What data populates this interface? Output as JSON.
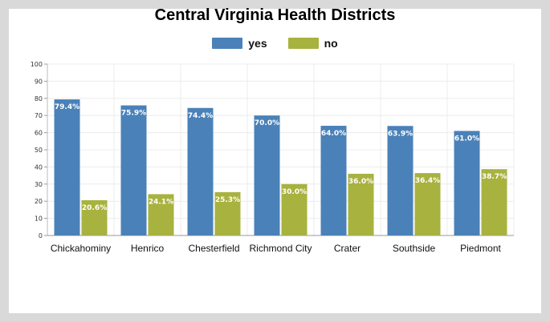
{
  "chart_data": {
    "type": "bar",
    "title": "Central Virginia Health Districts",
    "categories": [
      "Chickahominy",
      "Henrico",
      "Chesterfield",
      "Richmond City",
      "Crater",
      "Southside",
      "Piedmont"
    ],
    "series": [
      {
        "name": "yes",
        "color": "#4a81b8",
        "values": [
          79.4,
          75.9,
          74.4,
          70.0,
          64.0,
          63.9,
          61.0
        ],
        "labels": [
          "79.4%",
          "75.9%",
          "74.4%",
          "70.0%",
          "64.0%",
          "63.9%",
          "61.0%"
        ]
      },
      {
        "name": "no",
        "color": "#a8b23f",
        "values": [
          20.6,
          24.1,
          25.3,
          30.0,
          36.0,
          36.4,
          38.7
        ],
        "labels": [
          "20.6%",
          "24.1%",
          "25.3%",
          "30.0%",
          "36.0%",
          "36.4%",
          "38.7%"
        ]
      }
    ],
    "ylim": [
      0,
      100
    ],
    "yticks": [
      0,
      10,
      20,
      30,
      40,
      50,
      60,
      70,
      80,
      90,
      100
    ],
    "grid": true,
    "legend": "top-center"
  }
}
